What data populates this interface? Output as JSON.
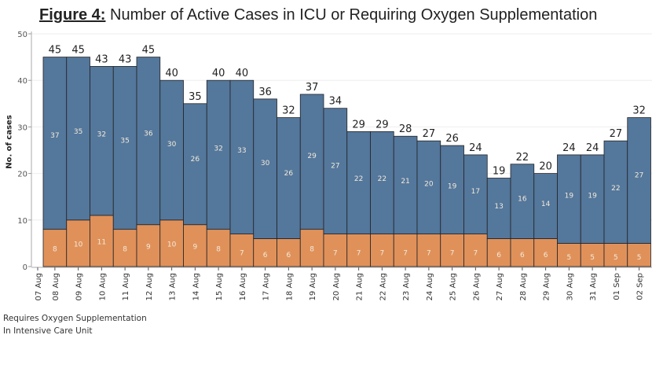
{
  "title": {
    "label": "Figure 4:",
    "text": " Number of Active Cases in ICU or Requiring Oxygen Supplementation"
  },
  "chart_data": {
    "type": "bar",
    "stacked": true,
    "ylabel": "No. of cases",
    "ylim": [
      0,
      50
    ],
    "yticks": [
      0,
      10,
      20,
      30,
      40,
      50
    ],
    "grid": true,
    "x_tick_labels": [
      "07 Aug",
      "08 Aug",
      "09 Aug",
      "10 Aug",
      "11 Aug",
      "12 Aug",
      "13 Aug",
      "14 Aug",
      "15 Aug",
      "16 Aug",
      "17 Aug",
      "18 Aug",
      "19 Aug",
      "20 Aug",
      "21 Aug",
      "22 Aug",
      "23 Aug",
      "24 Aug",
      "25 Aug",
      "26 Aug",
      "27 Aug",
      "28 Aug",
      "29 Aug",
      "30 Aug",
      "31 Aug",
      "01 Sep",
      "02 Sep"
    ],
    "categories": [
      "08 Aug",
      "09 Aug",
      "10 Aug",
      "11 Aug",
      "12 Aug",
      "13 Aug",
      "14 Aug",
      "15 Aug",
      "16 Aug",
      "17 Aug",
      "18 Aug",
      "19 Aug",
      "20 Aug",
      "21 Aug",
      "22 Aug",
      "23 Aug",
      "24 Aug",
      "25 Aug",
      "26 Aug",
      "27 Aug",
      "28 Aug",
      "29 Aug",
      "30 Aug",
      "31 Aug",
      "01 Sep",
      "02 Sep"
    ],
    "series": [
      {
        "name": "In Intensive Care Unit",
        "color": "#e0915a",
        "values": [
          8,
          10,
          11,
          8,
          9,
          10,
          9,
          8,
          7,
          6,
          6,
          8,
          7,
          7,
          7,
          7,
          7,
          7,
          7,
          6,
          6,
          6,
          5,
          5,
          5,
          5
        ]
      },
      {
        "name": "Requires Oxygen Supplementation",
        "color": "#54779c",
        "values": [
          37,
          35,
          32,
          35,
          36,
          30,
          26,
          32,
          33,
          30,
          26,
          29,
          27,
          22,
          22,
          21,
          20,
          19,
          17,
          13,
          16,
          14,
          19,
          19,
          22,
          27
        ]
      }
    ],
    "totals": [
      45,
      45,
      43,
      43,
      45,
      40,
      35,
      40,
      40,
      36,
      32,
      37,
      34,
      29,
      29,
      28,
      27,
      26,
      24,
      19,
      22,
      20,
      24,
      24,
      27,
      32
    ],
    "legend": [
      "Requires Oxygen Supplementation",
      "In Intensive Care Unit"
    ],
    "legend_position": "bottom-left"
  }
}
